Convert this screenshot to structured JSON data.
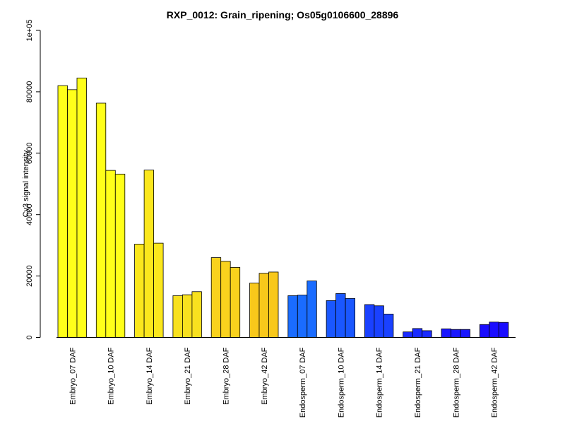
{
  "chart_data": {
    "type": "bar",
    "title": "RXP_0012: Grain_ripening; Os05g0106600_28896",
    "xlabel": "",
    "ylabel": "Cy3 signal intensity",
    "ylim": [
      0,
      100000
    ],
    "yticks": [
      0,
      20000,
      40000,
      60000,
      80000,
      100000
    ],
    "ytick_labels": [
      "0",
      "20000",
      "40000",
      "60000",
      "80000",
      "1e+05"
    ],
    "grid": false,
    "legend": "none",
    "categories": [
      "Embryo_07 DAF",
      "Embryo_10 DAF",
      "Embryo_14 DAF",
      "Embryo_21 DAF",
      "Embryo_28 DAF",
      "Embryo_42 DAF",
      "Endosperm_07 DAF",
      "Endosperm_10 DAF",
      "Endosperm_14 DAF",
      "Endosperm_21 DAF",
      "Endosperm_28 DAF",
      "Endosperm_42 DAF"
    ],
    "values": [
      [
        82000,
        80700,
        84500
      ],
      [
        76300,
        54400,
        53200
      ],
      [
        30400,
        54500,
        30700
      ],
      [
        13600,
        13900,
        14900
      ],
      [
        26000,
        24800,
        22800
      ],
      [
        17700,
        20900,
        21300
      ],
      [
        13600,
        13800,
        18400
      ],
      [
        12000,
        14300,
        12700
      ],
      [
        10700,
        10300,
        7600
      ],
      [
        1800,
        2900,
        2200
      ],
      [
        2800,
        2600,
        2600
      ],
      [
        4200,
        5000,
        4900
      ]
    ],
    "colors": [
      "#ffff1a",
      "#ffff1a",
      "#fbe71d",
      "#f8e11f",
      "#f9d21d",
      "#f8c81b",
      "#1a6cff",
      "#1a57ff",
      "#1a41ff",
      "#1a2bff",
      "#1a17ff",
      "#1a0dff"
    ]
  }
}
